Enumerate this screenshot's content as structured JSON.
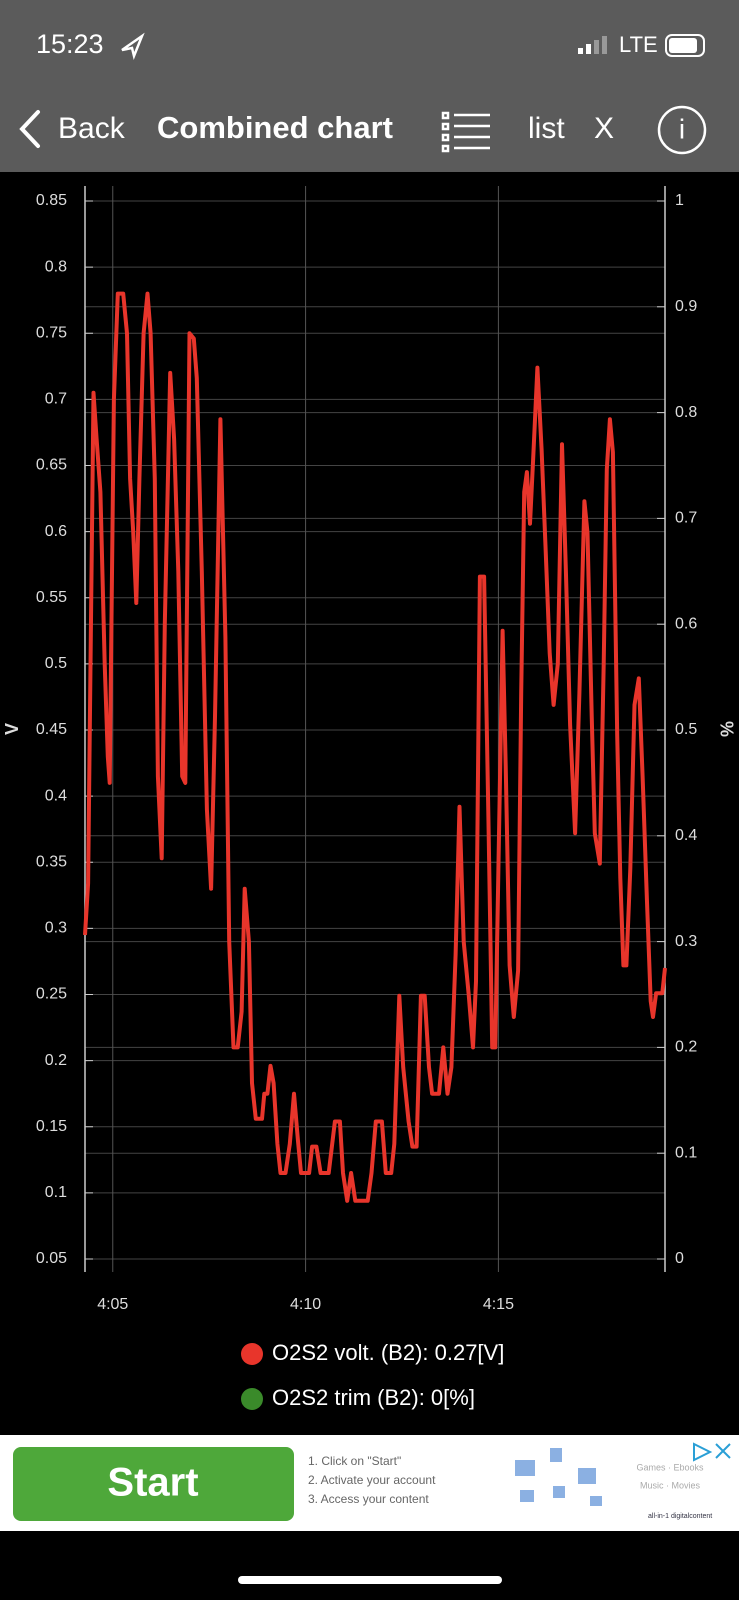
{
  "status": {
    "time": "15:23",
    "network": "LTE"
  },
  "nav": {
    "back": "Back",
    "title": "Combined chart",
    "list": "list",
    "close": "X"
  },
  "chart_data": {
    "type": "line",
    "ylabel": "V",
    "y2label": "%",
    "xlim": [
      4.28,
      19.32
    ],
    "xticks": [
      {
        "value": 5,
        "label": "4:05"
      },
      {
        "value": 10,
        "label": "4:10"
      },
      {
        "value": 15,
        "label": "4:15"
      }
    ],
    "ylim": [
      0.05,
      0.85
    ],
    "yticks": [
      0.05,
      0.1,
      0.15,
      0.2,
      0.25,
      0.3,
      0.35,
      0.4,
      0.45,
      0.5,
      0.55,
      0.6,
      0.65,
      0.7,
      0.75,
      0.8,
      0.85
    ],
    "y2lim": [
      0,
      1
    ],
    "y2ticks": [
      0,
      0.1,
      0.2,
      0.3,
      0.4,
      0.5,
      0.6,
      0.7,
      0.8,
      0.9,
      1
    ],
    "grid": true,
    "series": [
      {
        "name": "O2S2 volt. (B2): 0.27[V]",
        "color": "#e8352b",
        "axis": "y",
        "x": [
          4.28,
          4.36,
          4.5,
          4.58,
          4.68,
          4.79,
          4.87,
          4.92,
          5.03,
          5.13,
          5.27,
          5.37,
          5.45,
          5.53,
          5.61,
          5.69,
          5.8,
          5.9,
          5.98,
          6.09,
          6.17,
          6.27,
          6.35,
          6.49,
          6.59,
          6.7,
          6.8,
          6.88,
          6.99,
          7.1,
          7.18,
          7.31,
          7.44,
          7.55,
          7.65,
          7.79,
          7.92,
          8.02,
          8.13,
          8.24,
          8.34,
          8.42,
          8.53,
          8.61,
          8.71,
          8.87,
          8.93,
          9.01,
          9.09,
          9.17,
          9.27,
          9.35,
          9.48,
          9.59,
          9.7,
          9.8,
          9.88,
          10.09,
          10.17,
          10.28,
          10.39,
          10.6,
          10.76,
          10.89,
          10.97,
          11.08,
          11.18,
          11.29,
          11.61,
          11.71,
          11.82,
          11.98,
          12.08,
          12.22,
          12.3,
          12.43,
          12.53,
          12.67,
          12.77,
          12.88,
          12.99,
          13.09,
          13.2,
          13.28,
          13.46,
          13.57,
          13.68,
          13.78,
          13.89,
          13.99,
          14.1,
          14.23,
          14.34,
          14.42,
          14.52,
          14.63,
          14.74,
          14.84,
          14.92,
          15.0,
          15.11,
          15.19,
          15.29,
          15.4,
          15.51,
          15.59,
          15.67,
          15.74,
          15.82,
          15.9,
          16.01,
          16.12,
          16.22,
          16.33,
          16.43,
          16.54,
          16.65,
          16.75,
          16.86,
          16.99,
          17.1,
          17.23,
          17.31,
          17.42,
          17.5,
          17.63,
          17.73,
          17.81,
          17.89,
          17.97,
          18.08,
          18.16,
          18.24,
          18.32,
          18.42,
          18.53,
          18.64,
          18.74,
          18.85,
          18.95,
          19.01,
          19.09,
          19.25,
          19.32
        ],
        "values": [
          0.295,
          0.334,
          0.705,
          0.67,
          0.63,
          0.5,
          0.43,
          0.41,
          0.7,
          0.78,
          0.78,
          0.75,
          0.64,
          0.6,
          0.546,
          0.64,
          0.75,
          0.78,
          0.75,
          0.64,
          0.415,
          0.353,
          0.53,
          0.72,
          0.67,
          0.57,
          0.415,
          0.41,
          0.75,
          0.746,
          0.716,
          0.57,
          0.39,
          0.33,
          0.46,
          0.685,
          0.52,
          0.29,
          0.21,
          0.21,
          0.237,
          0.33,
          0.29,
          0.183,
          0.156,
          0.156,
          0.175,
          0.175,
          0.196,
          0.183,
          0.137,
          0.115,
          0.115,
          0.137,
          0.175,
          0.14,
          0.115,
          0.115,
          0.135,
          0.135,
          0.115,
          0.115,
          0.154,
          0.154,
          0.115,
          0.094,
          0.115,
          0.094,
          0.094,
          0.115,
          0.154,
          0.154,
          0.115,
          0.115,
          0.137,
          0.249,
          0.195,
          0.154,
          0.135,
          0.135,
          0.249,
          0.249,
          0.195,
          0.175,
          0.175,
          0.21,
          0.175,
          0.195,
          0.28,
          0.392,
          0.29,
          0.25,
          0.21,
          0.26,
          0.566,
          0.566,
          0.384,
          0.21,
          0.21,
          0.345,
          0.525,
          0.423,
          0.272,
          0.233,
          0.268,
          0.478,
          0.63,
          0.645,
          0.606,
          0.654,
          0.724,
          0.662,
          0.589,
          0.508,
          0.469,
          0.5,
          0.666,
          0.57,
          0.454,
          0.372,
          0.478,
          0.623,
          0.599,
          0.461,
          0.372,
          0.349,
          0.5,
          0.647,
          0.685,
          0.66,
          0.446,
          0.338,
          0.272,
          0.272,
          0.345,
          0.469,
          0.489,
          0.415,
          0.322,
          0.245,
          0.233,
          0.251,
          0.251,
          0.27
        ]
      },
      {
        "name": "O2S2 trim (B2): 0[%]",
        "color": "#3a8a2a",
        "axis": "y2",
        "x": [],
        "values": []
      }
    ]
  },
  "ad": {
    "button": "Start",
    "steps": [
      "1. Click on \"Start\"",
      "2. Activate your account",
      "3. Access your content"
    ],
    "tags": [
      "Games · Ebooks",
      "Music · Movies"
    ],
    "brand": "all-in-1 digitalcontent"
  }
}
